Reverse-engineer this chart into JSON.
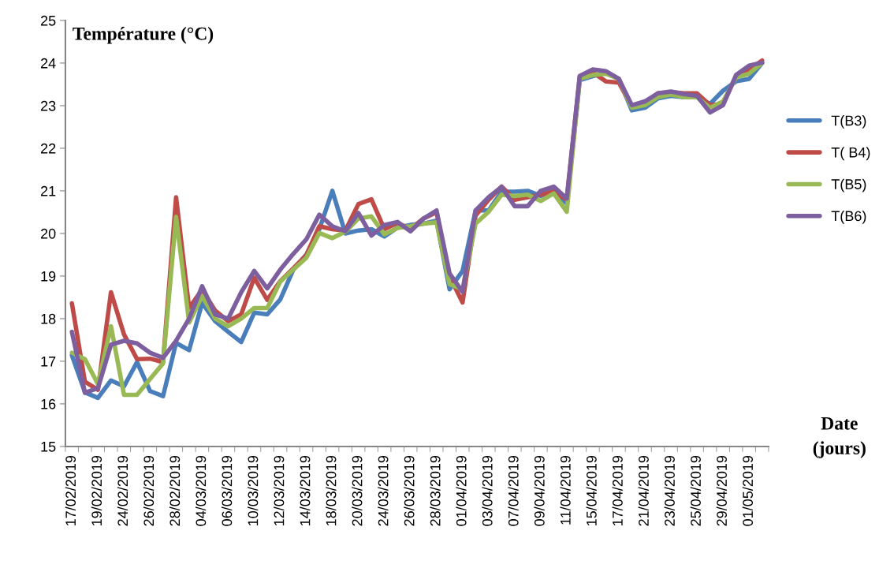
{
  "chart_data": {
    "type": "line",
    "ylabel": "Température (°C)",
    "xlabel": "Date\n(jours)",
    "categories": [
      "17/02/2019",
      null,
      "19/02/2019",
      null,
      "24/02/2019",
      null,
      "26/02/2019",
      null,
      "28/02/2019",
      null,
      "04/03/2019",
      null,
      "06/03/2019",
      null,
      "10/03/2019",
      null,
      "12/03/2019",
      null,
      "14/03/2019",
      null,
      "18/03/2019",
      null,
      "20/03/2019",
      null,
      "24/03/2019",
      null,
      "26/03/2019",
      null,
      "28/03/2019",
      null,
      "01/04/2019",
      null,
      "03/04/2019",
      null,
      "07/04/2019",
      null,
      "09/04/2019",
      null,
      "11/04/2019",
      null,
      "15/04/2019",
      null,
      "17/04/2019",
      null,
      "21/04/2019",
      null,
      "23/04/2019",
      null,
      "25/04/2019",
      null,
      "29/04/2019",
      null,
      "01/05/2019",
      null
    ],
    "series": [
      {
        "name": "T(B3)",
        "color": "#4a7ebb",
        "values": [
          17.14,
          16.27,
          16.14,
          16.55,
          16.41,
          16.98,
          16.3,
          16.18,
          17.43,
          17.26,
          18.37,
          17.94,
          17.69,
          17.45,
          18.14,
          18.1,
          18.45,
          19.15,
          19.5,
          20.1,
          21.0,
          20.0,
          20.07,
          20.1,
          19.93,
          20.14,
          20.2,
          20.23,
          20.3,
          18.69,
          19.12,
          20.54,
          20.54,
          20.98,
          20.98,
          21.0,
          20.88,
          21.0,
          20.7,
          23.6,
          23.69,
          23.78,
          23.63,
          22.89,
          22.95,
          23.17,
          23.23,
          23.2,
          23.2,
          23.04,
          23.35,
          23.57,
          23.63,
          24.0
        ]
      },
      {
        "name": "T( B4)",
        "color": "#be4b48",
        "values": [
          18.36,
          16.52,
          16.33,
          18.62,
          17.63,
          17.05,
          17.06,
          16.98,
          20.85,
          18.25,
          18.68,
          18.19,
          17.94,
          18.1,
          18.96,
          18.44,
          18.88,
          19.18,
          19.49,
          20.17,
          20.1,
          20.07,
          20.69,
          20.8,
          20.1,
          20.25,
          20.1,
          20.35,
          20.5,
          19.0,
          18.38,
          20.42,
          20.79,
          21.1,
          20.79,
          20.85,
          20.91,
          20.98,
          20.79,
          23.69,
          23.78,
          23.57,
          23.54,
          22.98,
          23.07,
          23.29,
          23.32,
          23.29,
          23.29,
          23.01,
          23.04,
          23.69,
          23.85,
          24.06
        ]
      },
      {
        "name": "T(B5)",
        "color": "#98b954",
        "values": [
          17.2,
          17.05,
          16.46,
          17.82,
          16.21,
          16.21,
          16.58,
          16.95,
          20.39,
          17.91,
          18.53,
          18.0,
          17.82,
          18.0,
          18.25,
          18.25,
          18.87,
          19.15,
          19.43,
          20.01,
          19.89,
          20.04,
          20.35,
          20.4,
          19.98,
          20.13,
          20.17,
          20.23,
          20.26,
          18.81,
          18.69,
          20.23,
          20.51,
          20.91,
          20.88,
          20.91,
          20.76,
          20.94,
          20.51,
          23.63,
          23.72,
          23.75,
          23.63,
          22.95,
          23.01,
          23.2,
          23.26,
          23.2,
          23.2,
          22.95,
          23.1,
          23.66,
          23.75,
          24.0
        ]
      },
      {
        "name": "T(B6)",
        "color": "#7d5fa0",
        "values": [
          17.69,
          16.26,
          16.37,
          17.39,
          17.48,
          17.42,
          17.2,
          17.08,
          17.48,
          18.0,
          18.76,
          18.1,
          18.0,
          18.62,
          19.12,
          18.71,
          19.15,
          19.52,
          19.86,
          20.44,
          20.17,
          20.05,
          20.48,
          19.95,
          20.2,
          20.27,
          20.05,
          20.35,
          20.54,
          19.06,
          18.63,
          20.54,
          20.85,
          21.09,
          20.64,
          20.64,
          21.0,
          21.1,
          20.82,
          23.7,
          23.85,
          23.81,
          23.63,
          23.01,
          23.1,
          23.29,
          23.33,
          23.27,
          23.23,
          22.84,
          23.01,
          23.72,
          23.94,
          24.01
        ]
      }
    ],
    "ylim": [
      15,
      25
    ],
    "yticks": [
      15,
      16,
      17,
      18,
      19,
      20,
      21,
      22,
      23,
      24,
      25
    ],
    "legend": "right",
    "grid": false,
    "marker": "none",
    "line_style": "solid"
  }
}
